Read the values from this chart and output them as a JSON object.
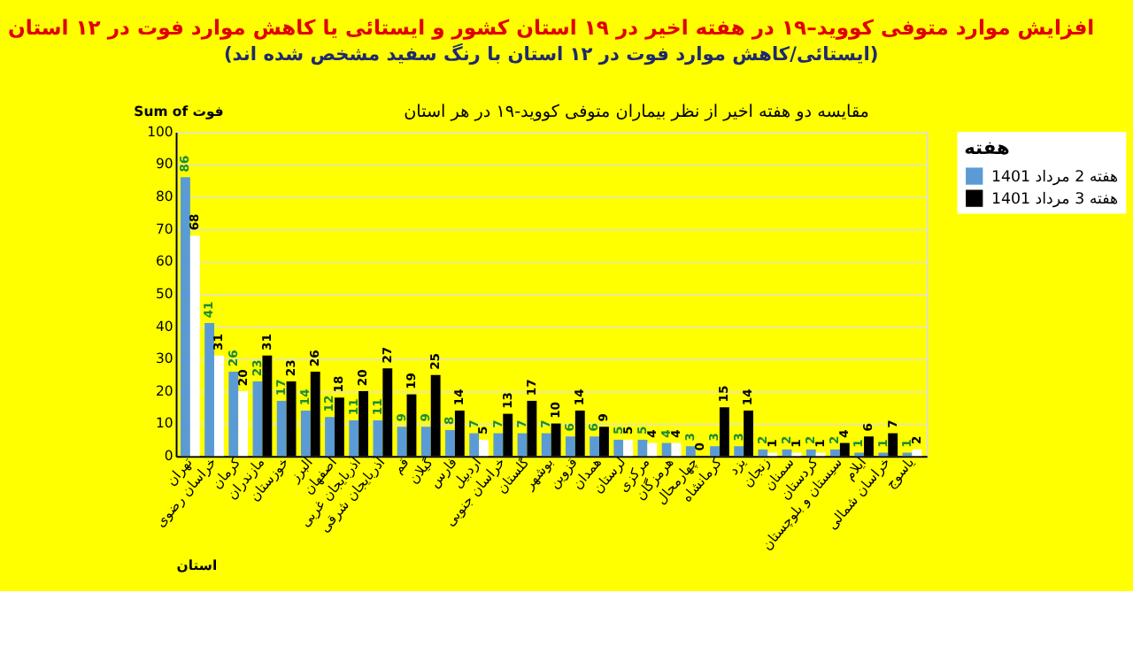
{
  "chart_data": {
    "type": "bar",
    "title": "افزایش موارد متوفی کووید–۱۹ در هفته اخیر در ۱۹ استان کشور و ایستائی یا کاهش موارد فوت در ۱۲ استان",
    "subtitle": "(ایستائی/کاهش موارد فوت در ۱۲ استان با رنگ سفید مشخص شده اند)",
    "annotations": [
      "مقایسه دو هفته اخیر از نظر بیماران متوفی کووید-۱۹ در هر استان"
    ],
    "ylabel": "Sum of فوت",
    "xlabel": "استان",
    "legend_title": "هفته",
    "categories": [
      "تهران",
      "خراسان رضوی",
      "کرمان",
      "مازندران",
      "خوزستان",
      "البرز",
      "اصفهان",
      "آذربایجان غربی",
      "آذربایجان شرقی",
      "قم",
      "گیلان",
      "فارس",
      "اردبیل",
      "خراسان جنوبی",
      "گلستان",
      "بوشهر",
      "قزوین",
      "همدان",
      "لرستان",
      "مرکزی",
      "هرمزگان",
      "چهارمحال",
      "کرمانشاه",
      "یزد",
      "زنجان",
      "سمنان",
      "کردستان",
      "سیستان و بلوچستان",
      "ایلام",
      "خراسان شمالی",
      "یاسوج"
    ],
    "series": [
      {
        "name": "هفته 2 مرداد 1401",
        "color": "#5b9bd5",
        "values": [
          86,
          41,
          26,
          23,
          17,
          14,
          12,
          11,
          11,
          9,
          9,
          8,
          7,
          7,
          7,
          7,
          6,
          6,
          5,
          5,
          4,
          3,
          3,
          3,
          2,
          2,
          2,
          2,
          1,
          1,
          1
        ]
      },
      {
        "name": "هفته 3 مرداد 1401",
        "color": "#000000",
        "values": [
          68,
          31,
          20,
          31,
          23,
          26,
          18,
          20,
          27,
          19,
          25,
          14,
          5,
          13,
          17,
          10,
          14,
          9,
          5,
          4,
          4,
          0,
          15,
          14,
          1,
          1,
          1,
          4,
          6,
          7,
          2
        ],
        "colors": [
          "#ffffff",
          "#ffffff",
          "#ffffff",
          "#000000",
          "#000000",
          "#000000",
          "#000000",
          "#000000",
          "#000000",
          "#000000",
          "#000000",
          "#000000",
          "#ffffff",
          "#000000",
          "#000000",
          "#000000",
          "#000000",
          "#000000",
          "#ffffff",
          "#ffffff",
          "#ffffff",
          "#ffffff",
          "#000000",
          "#000000",
          "#ffffff",
          "#ffffff",
          "#ffffff",
          "#000000",
          "#000000",
          "#000000",
          "#ffffff"
        ]
      }
    ],
    "ylim": [
      0,
      100
    ],
    "yticks": [
      0,
      10,
      20,
      30,
      40,
      50,
      60,
      70,
      80,
      90,
      100
    ],
    "grid": "y",
    "legend": "right",
    "data_labels": true
  }
}
